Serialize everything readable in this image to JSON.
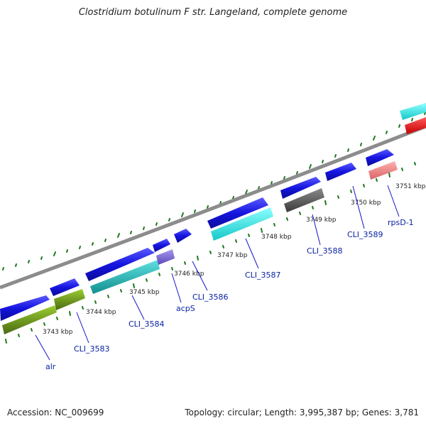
{
  "title": "Clostridium botulinum F str. Langeland, complete genome",
  "footer": {
    "accession": "Accession: NC_009699",
    "summary": "Topology: circular; Length: 3,995,387 bp; Genes: 3,781"
  },
  "scale_labels": [
    "3743 kbp",
    "3744 kbp",
    "3745 kbp",
    "3746 kbp",
    "3747 kbp",
    "3748 kbp",
    "3749 kbp",
    "3750 kbp",
    "3751 kbp"
  ],
  "gene_labels": [
    "alr",
    "CLI_3583",
    "CLI_3584",
    "acpS",
    "CLI_3586",
    "CLI_3587",
    "CLI_3588",
    "CLI_3589",
    "rpsD-1"
  ],
  "colors": {
    "backbone": "#8c8c8c",
    "tick": "#1e7a1e",
    "cds_arrow": "#1515e0",
    "label": "#0a22a0",
    "olive": "#6b8e23",
    "cyan": "#22d3d3",
    "teal": "#1fb7b7",
    "violet": "#7b6ad6",
    "grey": "#5a5a5a",
    "pink": "#f08080",
    "red": "#ee1111"
  }
}
